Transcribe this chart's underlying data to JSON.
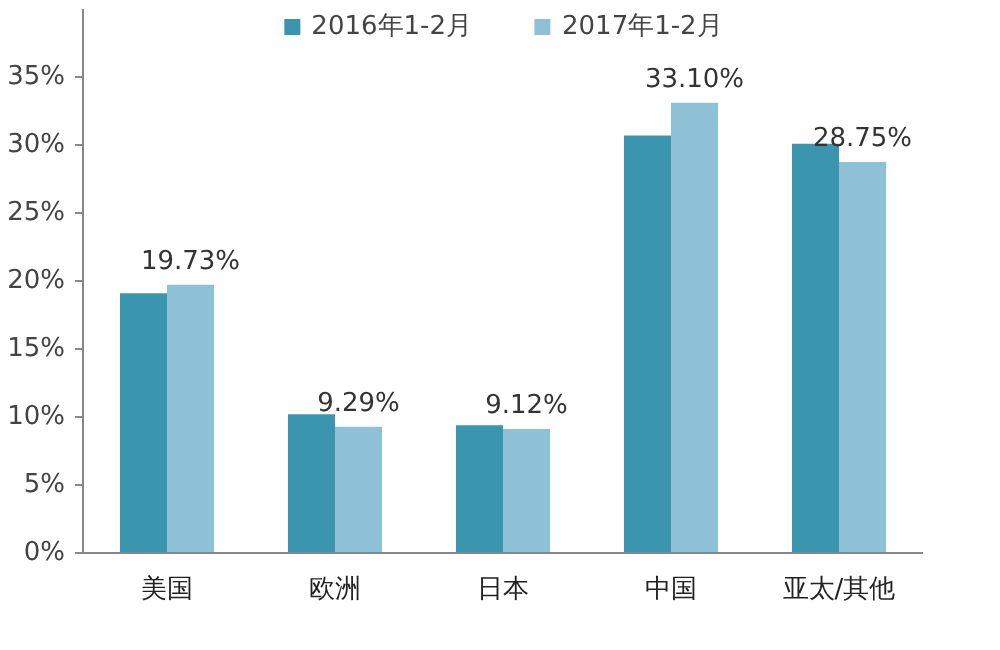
{
  "chart_data": {
    "type": "bar",
    "categories": [
      "美国",
      "欧洲",
      "日本",
      "中国",
      "亚太/其他"
    ],
    "series": [
      {
        "name": "2016年1-2月",
        "color": "#3a96ae",
        "values": [
          19.1,
          10.2,
          9.4,
          30.7,
          30.1
        ]
      },
      {
        "name": "2017年1-2月",
        "color": "#8fc1d6",
        "values": [
          19.73,
          9.29,
          9.12,
          33.1,
          28.75
        ],
        "value_labels": [
          "19.73%",
          "9.29%",
          "9.12%",
          "33.10%",
          "28.75%"
        ]
      }
    ],
    "ylim": [
      0,
      40
    ],
    "yticks": [
      {
        "value": 0,
        "label": "0%"
      },
      {
        "value": 5,
        "label": "5%"
      },
      {
        "value": 10,
        "label": "10%"
      },
      {
        "value": 15,
        "label": "15%"
      },
      {
        "value": 20,
        "label": "20%"
      },
      {
        "value": 25,
        "label": "25%"
      },
      {
        "value": 30,
        "label": "30%"
      },
      {
        "value": 35,
        "label": "35%"
      }
    ],
    "legend": "top",
    "grid": false
  }
}
